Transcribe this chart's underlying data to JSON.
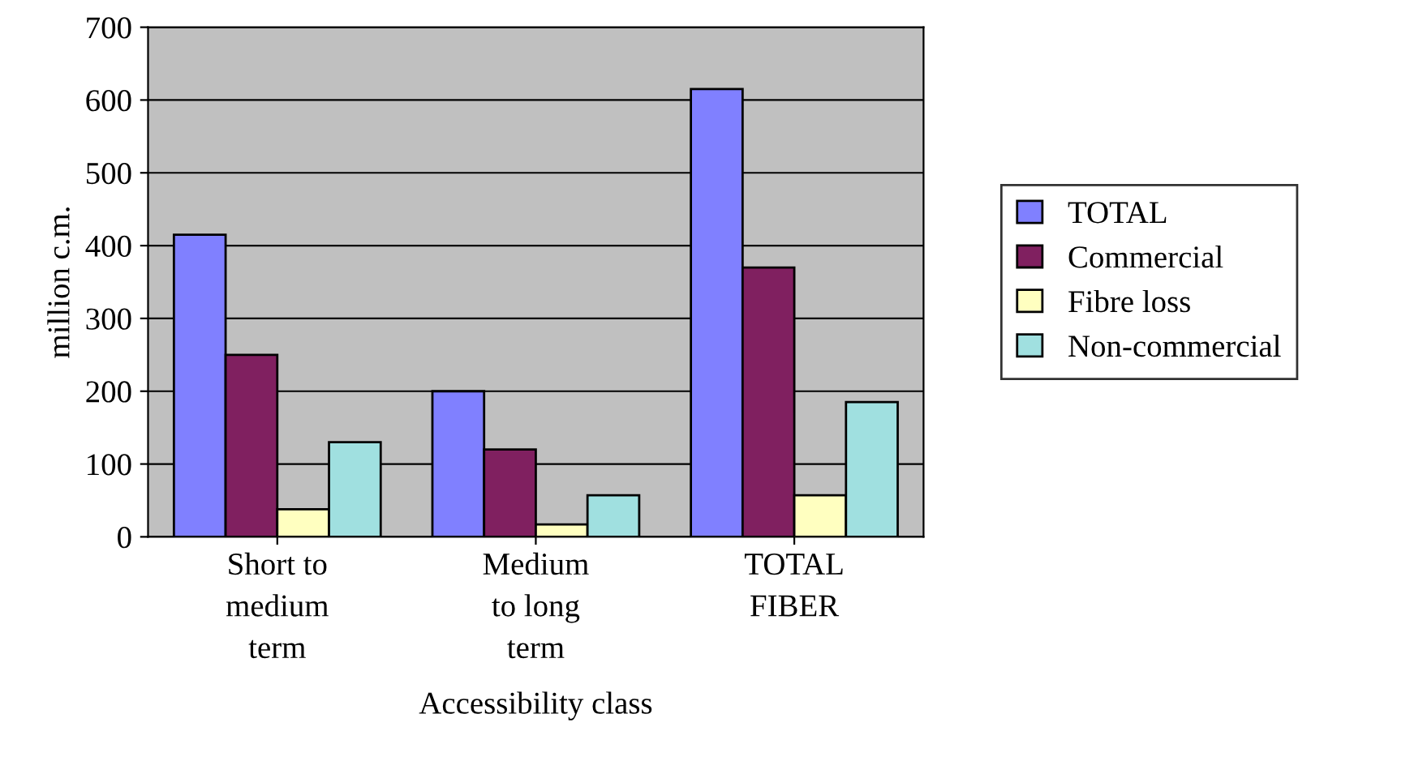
{
  "chart_data": {
    "type": "bar",
    "xlabel": "Accessibility class",
    "ylabel": "million c.m.",
    "categories": [
      "Short to\nmedium\nterm",
      "Medium\nto long\nterm",
      "TOTAL\nFIBER"
    ],
    "series": [
      {
        "name": "TOTAL",
        "color": "#8080ff",
        "values": [
          415,
          200,
          615
        ]
      },
      {
        "name": "Commercial",
        "color": "#802060",
        "values": [
          250,
          120,
          370
        ]
      },
      {
        "name": "Fibre loss",
        "color": "#ffffc0",
        "values": [
          38,
          17,
          57
        ]
      },
      {
        "name": "Non-commercial",
        "color": "#a0e0e0",
        "values": [
          130,
          57,
          185
        ]
      }
    ],
    "ylim": [
      0,
      700
    ],
    "yticks": [
      0,
      100,
      200,
      300,
      400,
      500,
      600,
      700
    ],
    "grid": "y",
    "legend": "right"
  }
}
